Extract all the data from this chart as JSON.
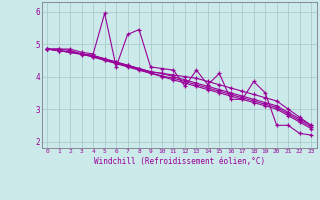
{
  "xlabel": "Windchill (Refroidissement éolien,°C)",
  "background_color": "#cceaea",
  "grid_color": "#aacccc",
  "line_color": "#990099",
  "spine_color": "#888899",
  "xlim": [
    -0.5,
    23.5
  ],
  "ylim": [
    1.8,
    6.3
  ],
  "yticks": [
    2,
    3,
    4,
    5,
    6
  ],
  "xticks": [
    0,
    1,
    2,
    3,
    4,
    5,
    6,
    7,
    8,
    9,
    10,
    11,
    12,
    13,
    14,
    15,
    16,
    17,
    18,
    19,
    20,
    21,
    22,
    23
  ],
  "lines": [
    [
      4.85,
      4.85,
      4.85,
      4.75,
      4.7,
      5.95,
      4.3,
      5.3,
      5.45,
      4.3,
      4.25,
      4.2,
      3.7,
      4.2,
      3.75,
      4.1,
      3.3,
      3.3,
      3.85,
      3.5,
      2.5,
      2.5,
      2.25,
      2.2
    ],
    [
      4.85,
      4.85,
      4.8,
      4.7,
      4.65,
      4.55,
      4.45,
      4.35,
      4.25,
      4.15,
      4.1,
      4.05,
      4.0,
      3.95,
      3.85,
      3.75,
      3.65,
      3.55,
      3.45,
      3.35,
      3.25,
      3.0,
      2.75,
      2.5
    ],
    [
      4.85,
      4.8,
      4.75,
      4.7,
      4.65,
      4.55,
      4.45,
      4.35,
      4.25,
      4.15,
      4.1,
      4.0,
      3.9,
      3.8,
      3.7,
      3.6,
      3.5,
      3.4,
      3.3,
      3.2,
      3.1,
      2.9,
      2.7,
      2.5
    ],
    [
      4.85,
      4.8,
      4.75,
      4.7,
      4.6,
      4.5,
      4.4,
      4.3,
      4.2,
      4.1,
      4.0,
      3.9,
      3.8,
      3.7,
      3.6,
      3.5,
      3.4,
      3.3,
      3.2,
      3.1,
      3.0,
      2.8,
      2.6,
      2.4
    ],
    [
      4.85,
      4.8,
      4.75,
      4.68,
      4.62,
      4.52,
      4.42,
      4.32,
      4.22,
      4.12,
      4.02,
      3.95,
      3.85,
      3.75,
      3.65,
      3.55,
      3.45,
      3.35,
      3.25,
      3.15,
      3.05,
      2.85,
      2.65,
      2.45
    ]
  ]
}
